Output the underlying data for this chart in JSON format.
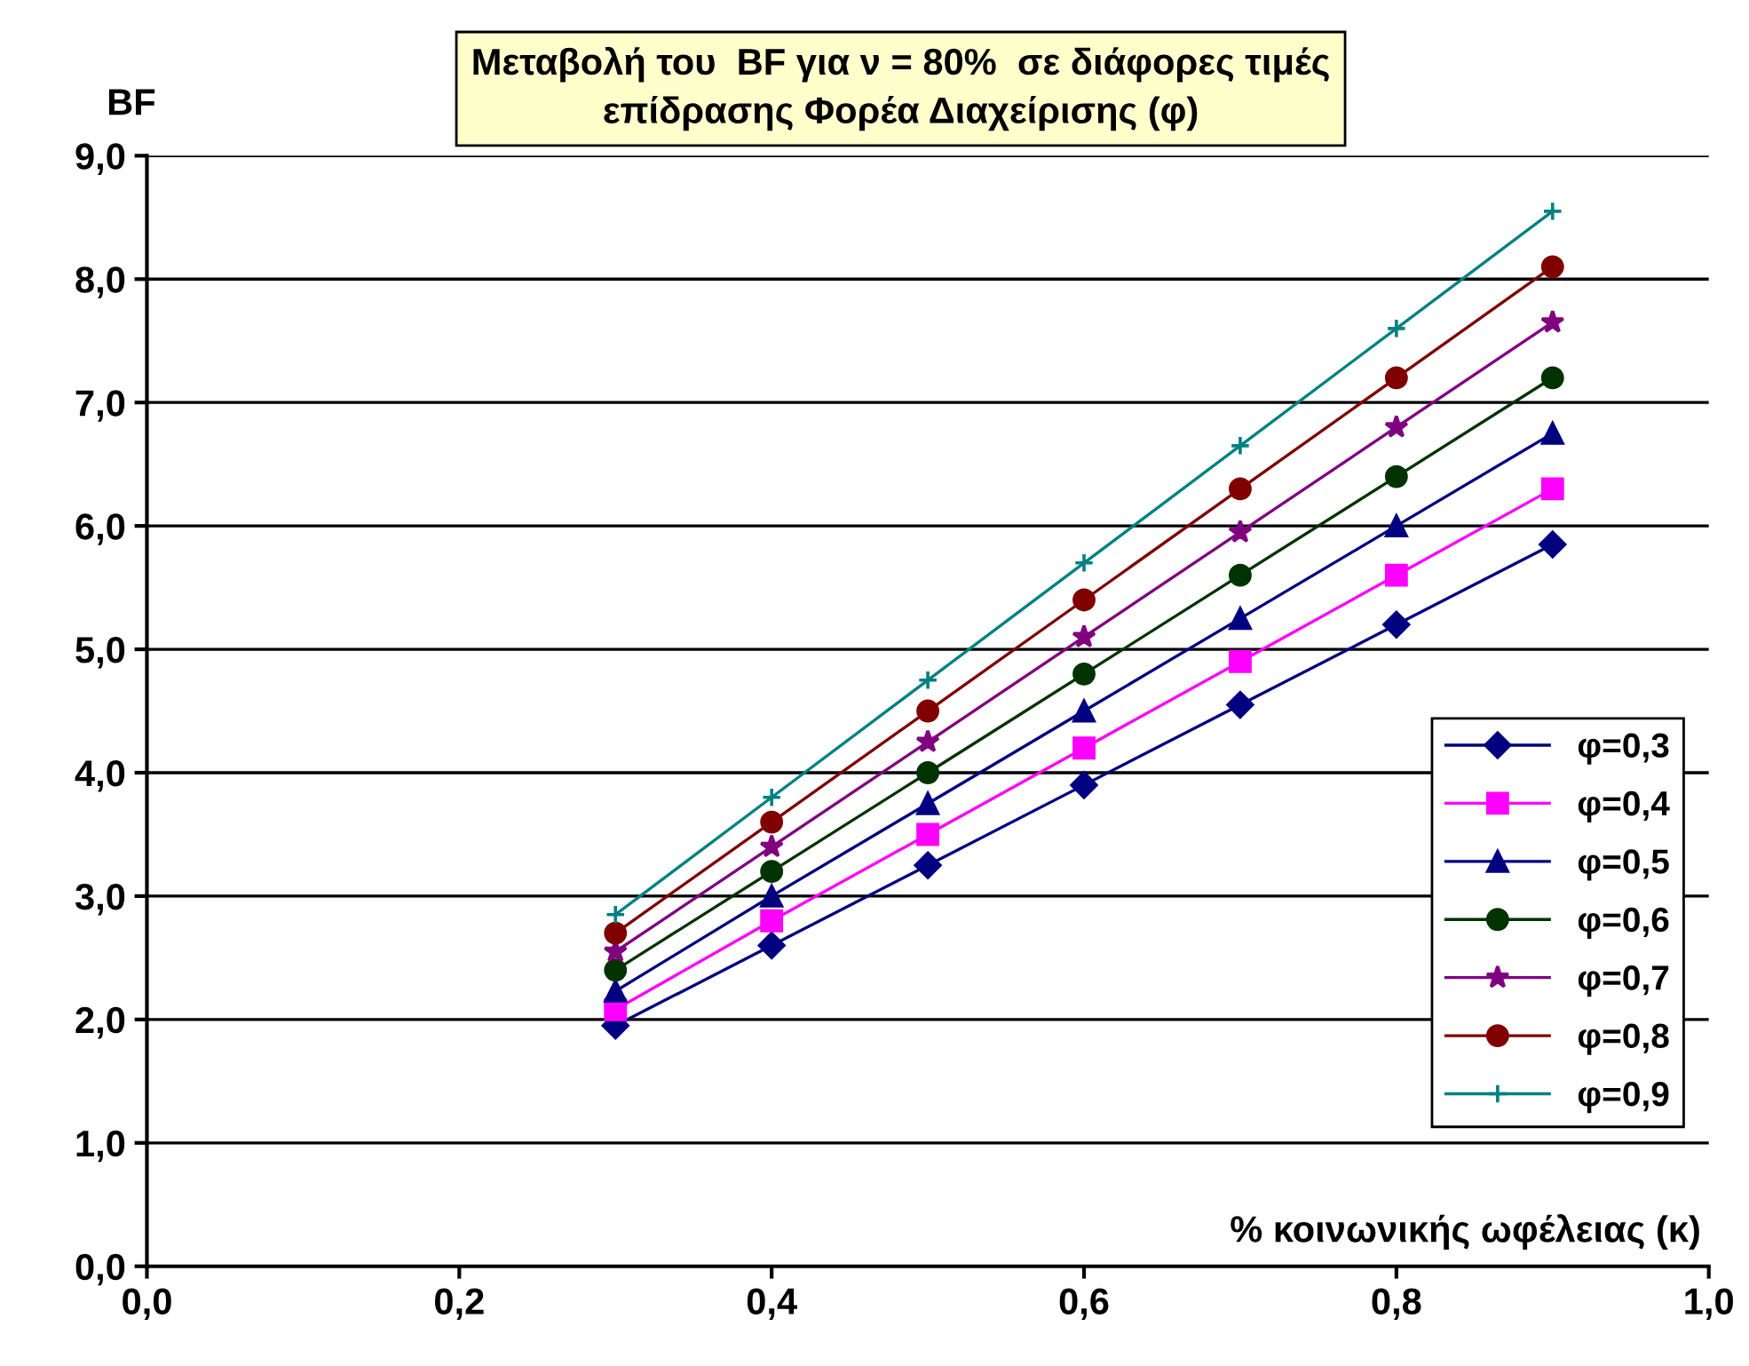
{
  "chart_data": {
    "type": "line",
    "title": "Μεταβολή του  BF για ν = 80%  σε διάφορες τιμές\nεπίδρασης Φορέα Διαχείρισης (φ)",
    "ylabel": "BF",
    "xlabel": "% κοινωνικής ωφέλειας (κ)",
    "x": [
      0.3,
      0.4,
      0.5,
      0.6,
      0.7,
      0.8,
      0.9
    ],
    "series": [
      {
        "name": "φ=0,3",
        "color": "#000080",
        "marker": "diamond",
        "values": [
          1.95,
          2.6,
          3.25,
          3.9,
          4.55,
          5.2,
          5.85
        ]
      },
      {
        "name": "φ=0,4",
        "color": "#ff00ff",
        "marker": "square",
        "values": [
          2.08,
          2.8,
          3.5,
          4.2,
          4.9,
          5.6,
          6.3
        ]
      },
      {
        "name": "φ=0,5",
        "color": "#000080",
        "marker": "triangle",
        "values": [
          2.23,
          3.0,
          3.75,
          4.5,
          5.25,
          6.0,
          6.75
        ]
      },
      {
        "name": "φ=0,6",
        "color": "#003300",
        "marker": "circle",
        "values": [
          2.4,
          3.2,
          4.0,
          4.8,
          5.6,
          6.4,
          7.2
        ]
      },
      {
        "name": "φ=0,7",
        "color": "#800080",
        "marker": "star",
        "values": [
          2.55,
          3.4,
          4.25,
          5.1,
          5.95,
          6.8,
          7.65
        ]
      },
      {
        "name": "φ=0,8",
        "color": "#800000",
        "marker": "circle",
        "values": [
          2.7,
          3.6,
          4.5,
          5.4,
          6.3,
          7.2,
          8.1
        ]
      },
      {
        "name": "φ=0,9",
        "color": "#008080",
        "marker": "cross",
        "values": [
          2.85,
          3.8,
          4.75,
          5.7,
          6.65,
          7.6,
          8.55
        ]
      }
    ],
    "xlim": [
      0,
      1
    ],
    "ylim": [
      0,
      9
    ],
    "xticks": [
      {
        "value": 0,
        "label": "0,0"
      },
      {
        "value": 0.2,
        "label": "0,2"
      },
      {
        "value": 0.4,
        "label": "0,4"
      },
      {
        "value": 0.6,
        "label": "0,6"
      },
      {
        "value": 0.8,
        "label": "0,8"
      },
      {
        "value": 1,
        "label": "1,0"
      }
    ],
    "yticks": [
      {
        "value": 0,
        "label": "0,0"
      },
      {
        "value": 1,
        "label": "1,0"
      },
      {
        "value": 2,
        "label": "2,0"
      },
      {
        "value": 3,
        "label": "3,0"
      },
      {
        "value": 4,
        "label": "4,0"
      },
      {
        "value": 5,
        "label": "5,0"
      },
      {
        "value": 6,
        "label": "6,0"
      },
      {
        "value": 7,
        "label": "7,0"
      },
      {
        "value": 8,
        "label": "8,0"
      },
      {
        "value": 9,
        "label": "9,0"
      }
    ],
    "grid": "y",
    "legend": "bottom right",
    "line_style": "solid"
  }
}
